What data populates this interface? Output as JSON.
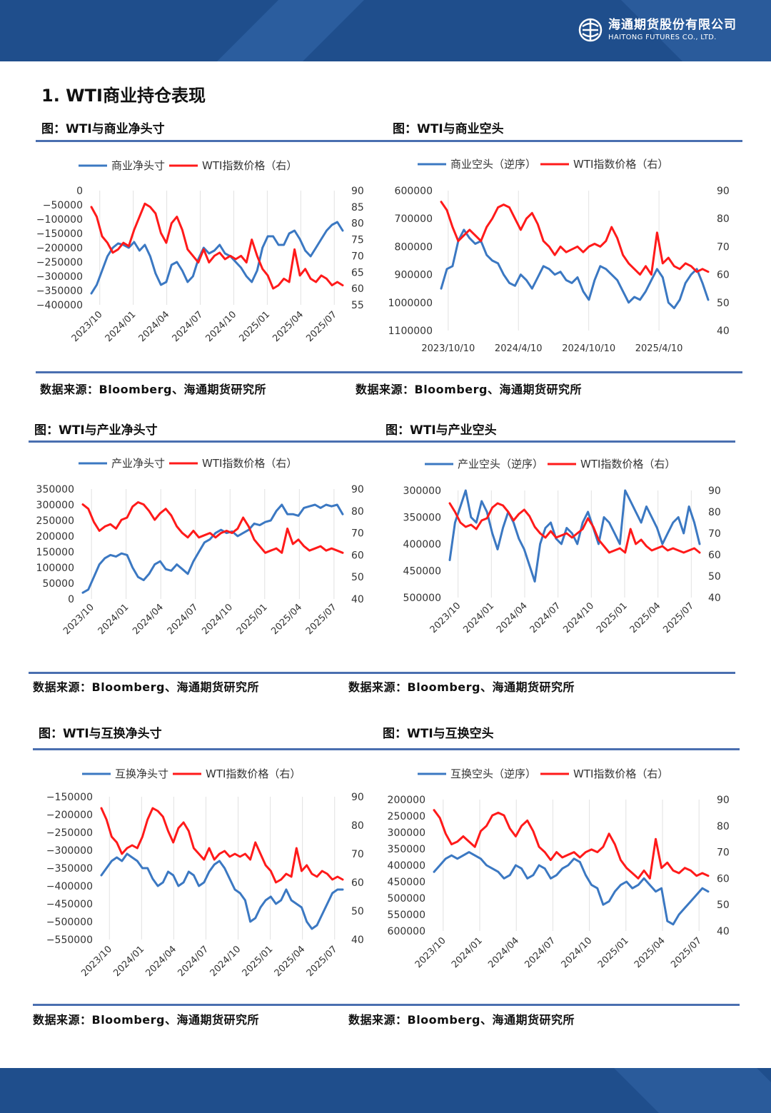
{
  "header": {
    "company_cn": "海通期货股份有限公司",
    "company_en": "HAITONG FUTURES CO., LTD."
  },
  "section_title": "1. WTI商业持仓表现",
  "colors": {
    "blue": "#3b78c2",
    "red": "#ff1a1a",
    "brand": "#1f4e8c",
    "rule": "#4a6fb0"
  },
  "figures": [
    {
      "title": "图：WTI与商业净头寸",
      "source": "数据来源：Bloomberg、海通期货研究所"
    },
    {
      "title": "图：WTI与商业空头",
      "source": "数据来源：Bloomberg、海通期货研究所"
    },
    {
      "title": "图：WTI与产业净头寸",
      "source": "数据来源：Bloomberg、海通期货研究所"
    },
    {
      "title": "图：WTI与产业空头",
      "source": "数据来源：Bloomberg、海通期货研究所"
    },
    {
      "title": "图：WTI与互换净头寸",
      "source": "数据来源：Bloomberg、海通期货研究所"
    },
    {
      "title": "图：WTI与互换空头",
      "source": "数据来源：Bloomberg、海通期货研究所"
    }
  ],
  "chart_data": [
    {
      "type": "line",
      "x_ticks": [
        "2023/10",
        "2024/01",
        "2024/04",
        "2024/07",
        "2024/10",
        "2025/01",
        "2025/04",
        "2025/07"
      ],
      "x_rotated": true,
      "y_left": {
        "min": -400000,
        "max": 0,
        "ticks": [
          0,
          -50000,
          -100000,
          -150000,
          -200000,
          -250000,
          -300000,
          -350000,
          -400000
        ],
        "inverted": false
      },
      "y_right": {
        "min": 55,
        "max": 90,
        "ticks": [
          90,
          85,
          80,
          75,
          70,
          65,
          60,
          55
        ]
      },
      "series": [
        {
          "name": "商业净头寸",
          "color": "#3b78c2",
          "axis": "left",
          "values": [
            -360000,
            -330000,
            -280000,
            -230000,
            -200000,
            -185000,
            -190000,
            -200000,
            -180000,
            -210000,
            -190000,
            -230000,
            -290000,
            -330000,
            -320000,
            -260000,
            -250000,
            -280000,
            -320000,
            -300000,
            -240000,
            -200000,
            -220000,
            -210000,
            -190000,
            -220000,
            -230000,
            -250000,
            -270000,
            -300000,
            -320000,
            -280000,
            -200000,
            -160000,
            -160000,
            -190000,
            -190000,
            -150000,
            -140000,
            -170000,
            -210000,
            -230000,
            -200000,
            -170000,
            -140000,
            -120000,
            -110000,
            -140000
          ]
        },
        {
          "name": "WTI指数价格（右）",
          "color": "#ff1a1a",
          "axis": "right",
          "values": [
            85,
            82,
            76,
            74,
            71,
            72,
            74,
            73,
            78,
            82,
            86,
            85,
            83,
            77,
            74,
            80,
            82,
            78,
            72,
            70,
            68,
            72,
            68,
            70,
            71,
            69,
            70,
            69,
            70,
            68,
            75,
            70,
            66,
            64,
            60,
            61,
            63,
            62,
            72,
            64,
            66,
            63,
            62,
            64,
            63,
            61,
            62,
            61
          ]
        }
      ]
    },
    {
      "type": "line",
      "x_ticks": [
        "2023/10/10",
        "2024/4/10",
        "2024/10/10",
        "2025/4/10"
      ],
      "x_rotated": false,
      "y_left": {
        "min": 600000,
        "max": 1100000,
        "ticks": [
          600000,
          700000,
          800000,
          900000,
          1000000,
          1100000
        ],
        "inverted": true
      },
      "y_right": {
        "min": 40,
        "max": 90,
        "ticks": [
          90,
          80,
          70,
          60,
          50,
          40
        ]
      },
      "series": [
        {
          "name": "商业空头（逆序）",
          "color": "#3b78c2",
          "axis": "left",
          "values": [
            950000,
            880000,
            870000,
            780000,
            740000,
            770000,
            790000,
            780000,
            830000,
            850000,
            860000,
            900000,
            930000,
            940000,
            900000,
            920000,
            950000,
            910000,
            870000,
            880000,
            900000,
            890000,
            920000,
            930000,
            910000,
            960000,
            990000,
            920000,
            870000,
            880000,
            900000,
            920000,
            960000,
            1000000,
            980000,
            990000,
            960000,
            920000,
            880000,
            910000,
            1000000,
            1020000,
            990000,
            930000,
            900000,
            880000,
            930000,
            990000
          ]
        },
        {
          "name": "WTI指数价格（右）",
          "color": "#ff1a1a",
          "axis": "right",
          "values": [
            86,
            83,
            77,
            72,
            74,
            76,
            74,
            72,
            77,
            80,
            84,
            85,
            84,
            80,
            76,
            80,
            82,
            78,
            72,
            70,
            67,
            70,
            68,
            69,
            70,
            68,
            70,
            71,
            70,
            72,
            77,
            73,
            67,
            64,
            62,
            60,
            63,
            60,
            75,
            64,
            66,
            63,
            62,
            64,
            63,
            61,
            62,
            61
          ]
        }
      ]
    },
    {
      "type": "line",
      "x_ticks": [
        "2023/10",
        "2024/01",
        "2024/04",
        "2024/07",
        "2024/10",
        "2025/01",
        "2025/04",
        "2025/07"
      ],
      "x_rotated": true,
      "y_left": {
        "min": 0,
        "max": 350000,
        "ticks": [
          350000,
          300000,
          250000,
          200000,
          150000,
          100000,
          50000,
          0
        ],
        "inverted": false
      },
      "y_right": {
        "min": 40,
        "max": 90,
        "ticks": [
          90,
          80,
          70,
          60,
          50,
          40
        ]
      },
      "series": [
        {
          "name": "产业净头寸",
          "color": "#3b78c2",
          "axis": "left",
          "values": [
            20000,
            30000,
            70000,
            110000,
            130000,
            140000,
            135000,
            145000,
            140000,
            100000,
            70000,
            60000,
            80000,
            110000,
            120000,
            95000,
            90000,
            110000,
            95000,
            80000,
            120000,
            150000,
            180000,
            190000,
            210000,
            220000,
            210000,
            215000,
            200000,
            210000,
            220000,
            240000,
            235000,
            245000,
            250000,
            280000,
            300000,
            270000,
            270000,
            265000,
            290000,
            295000,
            300000,
            290000,
            300000,
            295000,
            300000,
            270000
          ]
        },
        {
          "name": "WTI指数价格（右）",
          "color": "#ff1a1a",
          "axis": "right",
          "values": [
            83,
            81,
            75,
            71,
            73,
            74,
            72,
            76,
            77,
            82,
            84,
            83,
            80,
            76,
            79,
            81,
            78,
            73,
            70,
            68,
            71,
            68,
            69,
            70,
            68,
            70,
            71,
            70,
            72,
            77,
            73,
            67,
            64,
            61,
            62,
            63,
            61,
            72,
            65,
            67,
            64,
            62,
            63,
            64,
            62,
            63,
            62,
            61
          ]
        }
      ]
    },
    {
      "type": "line",
      "x_ticks": [
        "2023/10",
        "2024/01",
        "2024/04",
        "2024/07",
        "2024/10",
        "2025/01",
        "2025/04",
        "2025/07"
      ],
      "x_rotated": true,
      "y_left": {
        "min": 300000,
        "max": 500000,
        "ticks": [
          300000,
          350000,
          400000,
          450000,
          500000
        ],
        "inverted": true
      },
      "y_right": {
        "min": 40,
        "max": 90,
        "ticks": [
          90,
          80,
          70,
          60,
          50,
          40
        ]
      },
      "series": [
        {
          "name": "产业空头（逆序）",
          "color": "#3b78c2",
          "axis": "left",
          "values": [
            430000,
            360000,
            330000,
            300000,
            350000,
            360000,
            320000,
            340000,
            380000,
            410000,
            370000,
            340000,
            360000,
            390000,
            410000,
            440000,
            470000,
            400000,
            370000,
            360000,
            390000,
            400000,
            370000,
            380000,
            400000,
            360000,
            340000,
            370000,
            400000,
            350000,
            360000,
            380000,
            400000,
            300000,
            320000,
            340000,
            360000,
            330000,
            350000,
            370000,
            400000,
            380000,
            360000,
            350000,
            380000,
            330000,
            360000,
            400000
          ]
        },
        {
          "name": "WTI指数价格（右）",
          "color": "#ff1a1a",
          "axis": "right",
          "values": [
            84,
            80,
            75,
            73,
            74,
            72,
            76,
            77,
            82,
            84,
            83,
            80,
            76,
            79,
            81,
            78,
            73,
            70,
            68,
            71,
            68,
            69,
            70,
            68,
            70,
            72,
            77,
            73,
            67,
            64,
            61,
            62,
            63,
            61,
            72,
            65,
            67,
            64,
            62,
            63,
            64,
            62,
            63,
            62,
            61,
            62,
            63,
            61
          ]
        }
      ]
    },
    {
      "type": "line",
      "x_ticks": [
        "2023/10",
        "2024/01",
        "2024/04",
        "2024/07",
        "2024/10",
        "2025/01",
        "2025/04",
        "2025/07"
      ],
      "x_rotated": true,
      "y_left": {
        "min": -550000,
        "max": -150000,
        "ticks": [
          -150000,
          -200000,
          -250000,
          -300000,
          -350000,
          -400000,
          -450000,
          -500000,
          -550000
        ],
        "inverted": false
      },
      "y_right": {
        "min": 40,
        "max": 90,
        "ticks": [
          90,
          80,
          70,
          60,
          50,
          40
        ]
      },
      "series": [
        {
          "name": "互换净头寸",
          "color": "#3b78c2",
          "axis": "left",
          "values": [
            -370000,
            -350000,
            -330000,
            -320000,
            -330000,
            -310000,
            -320000,
            -330000,
            -350000,
            -350000,
            -380000,
            -400000,
            -390000,
            -360000,
            -370000,
            -400000,
            -390000,
            -360000,
            -370000,
            -400000,
            -390000,
            -360000,
            -340000,
            -330000,
            -350000,
            -380000,
            -410000,
            -420000,
            -440000,
            -500000,
            -490000,
            -460000,
            -440000,
            -430000,
            -450000,
            -440000,
            -410000,
            -440000,
            -450000,
            -460000,
            -500000,
            -520000,
            -510000,
            -480000,
            -450000,
            -420000,
            -410000,
            -410000
          ]
        },
        {
          "name": "WTI指数价格（右）",
          "color": "#ff1a1a",
          "axis": "right",
          "values": [
            86,
            82,
            76,
            74,
            70,
            72,
            73,
            72,
            76,
            82,
            86,
            85,
            83,
            78,
            74,
            79,
            81,
            78,
            72,
            70,
            68,
            72,
            68,
            70,
            71,
            69,
            70,
            69,
            70,
            68,
            74,
            70,
            66,
            64,
            60,
            61,
            63,
            62,
            72,
            64,
            66,
            63,
            62,
            64,
            63,
            61,
            62,
            61
          ]
        }
      ]
    },
    {
      "type": "line",
      "x_ticks": [
        "2023/10",
        "2024/01",
        "2024/04",
        "2024/07",
        "2024/10",
        "2025/01",
        "2025/04",
        "2025/07"
      ],
      "x_rotated": true,
      "y_left": {
        "min": 200000,
        "max": 600000,
        "ticks": [
          200000,
          250000,
          300000,
          350000,
          400000,
          450000,
          500000,
          550000,
          600000
        ],
        "inverted": true
      },
      "y_right": {
        "min": 40,
        "max": 90,
        "ticks": [
          90,
          80,
          70,
          60,
          50,
          40
        ]
      },
      "series": [
        {
          "name": "互换空头（逆序）",
          "color": "#3b78c2",
          "axis": "left",
          "values": [
            420000,
            400000,
            380000,
            370000,
            380000,
            370000,
            360000,
            370000,
            380000,
            400000,
            410000,
            420000,
            440000,
            430000,
            400000,
            410000,
            440000,
            430000,
            400000,
            410000,
            440000,
            430000,
            410000,
            400000,
            380000,
            390000,
            430000,
            460000,
            470000,
            520000,
            510000,
            480000,
            460000,
            450000,
            470000,
            460000,
            440000,
            460000,
            480000,
            470000,
            570000,
            580000,
            550000,
            530000,
            510000,
            490000,
            470000,
            480000
          ]
        },
        {
          "name": "WTI指数价格（右）",
          "color": "#ff1a1a",
          "axis": "right",
          "values": [
            86,
            83,
            77,
            73,
            74,
            76,
            74,
            72,
            78,
            80,
            84,
            85,
            84,
            79,
            76,
            80,
            82,
            78,
            72,
            70,
            67,
            70,
            68,
            69,
            70,
            68,
            70,
            71,
            70,
            72,
            77,
            73,
            67,
            64,
            62,
            60,
            63,
            60,
            75,
            64,
            66,
            63,
            62,
            64,
            63,
            61,
            62,
            61
          ]
        }
      ]
    }
  ]
}
